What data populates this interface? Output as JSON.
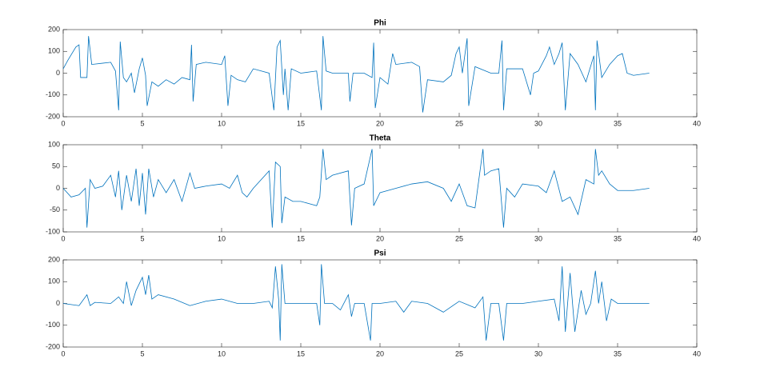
{
  "chart_data": [
    {
      "type": "line",
      "title": "Phi",
      "color": "#0072bd",
      "xlim": [
        0,
        40
      ],
      "xticks": [
        0,
        5,
        10,
        15,
        20,
        25,
        30,
        35,
        40
      ],
      "ylim": [
        -200,
        200
      ],
      "yticks": [
        -200,
        -100,
        0,
        100,
        200
      ],
      "x": [
        0,
        0.3,
        0.8,
        1.0,
        1.1,
        1.5,
        1.6,
        1.8,
        3,
        3.3,
        3.5,
        3.6,
        3.8,
        4,
        4.3,
        4.5,
        4.8,
        5,
        5.2,
        5.3,
        5.6,
        6,
        6.5,
        7,
        7.5,
        8,
        8.1,
        8.2,
        8.4,
        9,
        10,
        10.2,
        10.4,
        10.6,
        11,
        11.5,
        12,
        12.5,
        13,
        13.3,
        13.5,
        13.7,
        13.9,
        14,
        14.2,
        14.4,
        15,
        16,
        16.3,
        16.4,
        16.6,
        17,
        18,
        18.1,
        18.3,
        19,
        19.5,
        19.6,
        19.7,
        20,
        20.5,
        20.8,
        21,
        22,
        22.5,
        22.7,
        23,
        24,
        24.5,
        24.8,
        25,
        25.2,
        25.5,
        25.6,
        26,
        27,
        27.5,
        27.7,
        27.8,
        28,
        29,
        29.5,
        29.7,
        30,
        30.5,
        30.7,
        31,
        31.3,
        31.5,
        31.7,
        32,
        32.5,
        33,
        33.5,
        33.6,
        33.7,
        34,
        34.5,
        35,
        35.3,
        35.6,
        36,
        37
      ],
      "values": [
        20,
        60,
        120,
        130,
        -20,
        -20,
        170,
        40,
        50,
        10,
        -170,
        145,
        -20,
        -40,
        0,
        -90,
        20,
        70,
        -10,
        -150,
        -40,
        -60,
        -30,
        -50,
        -20,
        -30,
        130,
        -130,
        40,
        50,
        40,
        80,
        -150,
        -10,
        -30,
        -40,
        20,
        10,
        0,
        -170,
        120,
        150,
        -100,
        20,
        -170,
        20,
        0,
        10,
        -170,
        170,
        10,
        0,
        0,
        -130,
        0,
        0,
        -20,
        140,
        -160,
        -20,
        -50,
        90,
        40,
        50,
        30,
        -180,
        -30,
        -40,
        -10,
        90,
        120,
        0,
        160,
        -150,
        30,
        0,
        0,
        150,
        -170,
        20,
        20,
        -100,
        0,
        10,
        80,
        120,
        40,
        90,
        140,
        -170,
        90,
        40,
        -40,
        80,
        -170,
        150,
        -20,
        40,
        80,
        90,
        0,
        -10,
        0
      ]
    },
    {
      "type": "line",
      "title": "Theta",
      "color": "#0072bd",
      "xlim": [
        0,
        40
      ],
      "xticks": [
        0,
        5,
        10,
        15,
        20,
        25,
        30,
        35,
        40
      ],
      "ylim": [
        -100,
        100
      ],
      "yticks": [
        -100,
        -50,
        0,
        50,
        100
      ],
      "x": [
        0,
        0.5,
        1,
        1.4,
        1.5,
        1.7,
        2,
        2.5,
        3,
        3.3,
        3.5,
        3.7,
        4,
        4.3,
        4.6,
        4.8,
        5,
        5.2,
        5.4,
        5.7,
        6,
        6.5,
        7,
        7.5,
        8,
        8.3,
        9,
        10,
        10.5,
        11,
        11.3,
        11.6,
        12,
        13,
        13.2,
        13.4,
        13.7,
        13.8,
        14,
        14.5,
        15,
        16,
        16.2,
        16.4,
        16.6,
        17,
        18,
        18.2,
        18.4,
        19,
        19.5,
        19.6,
        20,
        21,
        22,
        23,
        24,
        24.5,
        25,
        25.5,
        26,
        26.5,
        26.6,
        27,
        27.5,
        27.8,
        28,
        28.5,
        29,
        30,
        30.5,
        31,
        31.5,
        32,
        32.5,
        33,
        33.5,
        33.6,
        33.8,
        34,
        34.5,
        35,
        36,
        37
      ],
      "values": [
        0,
        -20,
        -15,
        0,
        -90,
        20,
        0,
        5,
        30,
        -20,
        40,
        -50,
        30,
        -30,
        45,
        -40,
        35,
        -60,
        45,
        -20,
        20,
        -10,
        20,
        -30,
        35,
        0,
        5,
        10,
        0,
        30,
        -10,
        -20,
        0,
        40,
        -90,
        60,
        50,
        -80,
        -20,
        -30,
        -30,
        -40,
        -20,
        90,
        20,
        30,
        40,
        -85,
        0,
        10,
        90,
        -40,
        -10,
        0,
        10,
        15,
        0,
        -30,
        10,
        -40,
        -45,
        90,
        30,
        40,
        45,
        -90,
        0,
        -20,
        10,
        5,
        -10,
        40,
        -30,
        -20,
        -60,
        20,
        10,
        90,
        30,
        40,
        10,
        -5,
        -5,
        0
      ]
    },
    {
      "type": "line",
      "title": "Psi",
      "color": "#0072bd",
      "xlim": [
        0,
        40
      ],
      "xticks": [
        0,
        5,
        10,
        15,
        20,
        25,
        30,
        35,
        40
      ],
      "ylim": [
        -200,
        200
      ],
      "yticks": [
        -200,
        -100,
        0,
        100,
        200
      ],
      "x": [
        0,
        1,
        1.5,
        1.7,
        2,
        3,
        3.5,
        3.8,
        4,
        4.3,
        4.6,
        5,
        5.2,
        5.4,
        5.6,
        6,
        7,
        8,
        9,
        10,
        11,
        12,
        13,
        13.2,
        13.4,
        13.6,
        13.7,
        13.8,
        14,
        15,
        16,
        16.2,
        16.3,
        16.5,
        17,
        17.5,
        18,
        18.2,
        18.4,
        19,
        19.4,
        19.5,
        20,
        21,
        21.5,
        22,
        23,
        24,
        25,
        26,
        26.5,
        26.7,
        27,
        27.5,
        27.8,
        28,
        29,
        30,
        31,
        31.3,
        31.5,
        31.7,
        32,
        32.3,
        32.7,
        33,
        33.3,
        33.6,
        33.8,
        34,
        34.3,
        34.6,
        35,
        36,
        37
      ],
      "values": [
        0,
        -10,
        40,
        -10,
        5,
        0,
        30,
        0,
        100,
        -10,
        60,
        120,
        40,
        130,
        20,
        40,
        20,
        -10,
        10,
        20,
        0,
        0,
        10,
        -20,
        170,
        20,
        -170,
        180,
        0,
        0,
        0,
        -100,
        180,
        0,
        0,
        -30,
        40,
        -60,
        0,
        0,
        -170,
        0,
        0,
        10,
        -40,
        10,
        0,
        -40,
        10,
        -20,
        30,
        -170,
        0,
        0,
        -170,
        0,
        0,
        10,
        20,
        -80,
        170,
        -130,
        140,
        -130,
        60,
        -50,
        0,
        150,
        0,
        100,
        -80,
        20,
        0,
        0,
        0
      ]
    }
  ]
}
